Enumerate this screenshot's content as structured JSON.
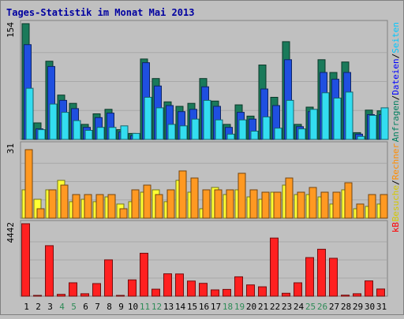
{
  "chart_data": {
    "type": "bar",
    "title": "Tages-Statistik im Monat Mai 2013",
    "days": [
      "1",
      "2",
      "3",
      "4",
      "5",
      "6",
      "7",
      "8",
      "9",
      "10",
      "11",
      "12",
      "13",
      "14",
      "15",
      "16",
      "17",
      "18",
      "19",
      "20",
      "21",
      "22",
      "23",
      "24",
      "25",
      "26",
      "27",
      "28",
      "29",
      "30",
      "31"
    ],
    "weekend_days": [
      "4",
      "5",
      "11",
      "12",
      "18",
      "19",
      "25",
      "26"
    ],
    "panels": [
      {
        "id": "top",
        "max_label": "154",
        "max": 154,
        "legend": [
          {
            "text": "Anfragen",
            "color": "#007f5f"
          },
          {
            "text": "/",
            "color": "#000000"
          },
          {
            "text": "Dateien",
            "color": "#0000ff"
          },
          {
            "text": "/",
            "color": "#000000"
          },
          {
            "text": "Seiten",
            "color": "#00c8ff"
          }
        ],
        "series": [
          {
            "key": "Anfragen",
            "color": "#1a7a5a",
            "values": [
              154,
              22,
              104,
              59,
              48,
              20,
              34,
              40,
              13,
              8,
              107,
              81,
              50,
              44,
              48,
              81,
              51,
              20,
              46,
              31,
              99,
              56,
              130,
              20,
              43,
              106,
              89,
              103,
              9,
              39,
              38
            ]
          },
          {
            "key": "Dateien",
            "color": "#1f4fe0",
            "values": [
              126,
              14,
              97,
              52,
              41,
              16,
              29,
              35,
              10,
              5,
              102,
              71,
              45,
              37,
              40,
              70,
              44,
              16,
              36,
              27,
              67,
              45,
              106,
              17,
              37,
              89,
              80,
              89,
              7,
              33,
              33
            ]
          },
          {
            "key": "Seiten",
            "color": "#33ddf0",
            "values": [
              68,
              13,
              47,
              36,
              25,
              12,
              16,
              16,
              18,
              8,
              56,
              42,
              20,
              18,
              27,
              52,
              26,
              7,
              26,
              11,
              30,
              15,
              52,
              14,
              40,
              62,
              55,
              63,
              4,
              32,
              42
            ]
          }
        ]
      },
      {
        "id": "middle",
        "max_label": "31",
        "max": 31,
        "legend": [
          {
            "text": "Besuche",
            "color": "#d4c800"
          },
          {
            "text": "/",
            "color": "#000000"
          },
          {
            "text": "Rechner",
            "color": "#ff8c00"
          }
        ],
        "series": [
          {
            "key": "Besuche",
            "color": "#ffff33",
            "values": [
              12,
              8,
              12,
              16,
              7,
              8,
              7,
              9,
              6,
              7,
              11,
              12,
              7,
              16,
              11,
              4,
              13,
              10,
              12,
              9,
              8,
              11,
              14,
              10,
              10,
              9,
              6,
              12,
              4,
              5,
              6
            ]
          },
          {
            "key": "Rechner",
            "color": "#ff9922",
            "values": [
              29,
              4,
              12,
              14,
              10,
              10,
              10,
              10,
              4,
              12,
              14,
              10,
              12,
              20,
              17,
              12,
              12,
              12,
              19,
              12,
              11,
              11,
              17,
              11,
              13,
              11,
              11,
              15,
              6,
              10,
              10
            ]
          }
        ]
      },
      {
        "id": "bottom",
        "max_label": "4442",
        "max": 4442,
        "legend": [
          {
            "text": "kB",
            "color": "#ff0000"
          }
        ],
        "series": [
          {
            "key": "kB",
            "color": "#ff2020",
            "values": [
              4442,
              20,
              3096,
              109,
              821,
              150,
              772,
              2228,
              20,
              999,
              2630,
              431,
              1370,
              1360,
              928,
              788,
              387,
              414,
              1187,
              690,
              574,
              3563,
              178,
              821,
              2368,
              2878,
              2323,
              61,
              150,
              935,
              437
            ]
          }
        ]
      }
    ]
  }
}
